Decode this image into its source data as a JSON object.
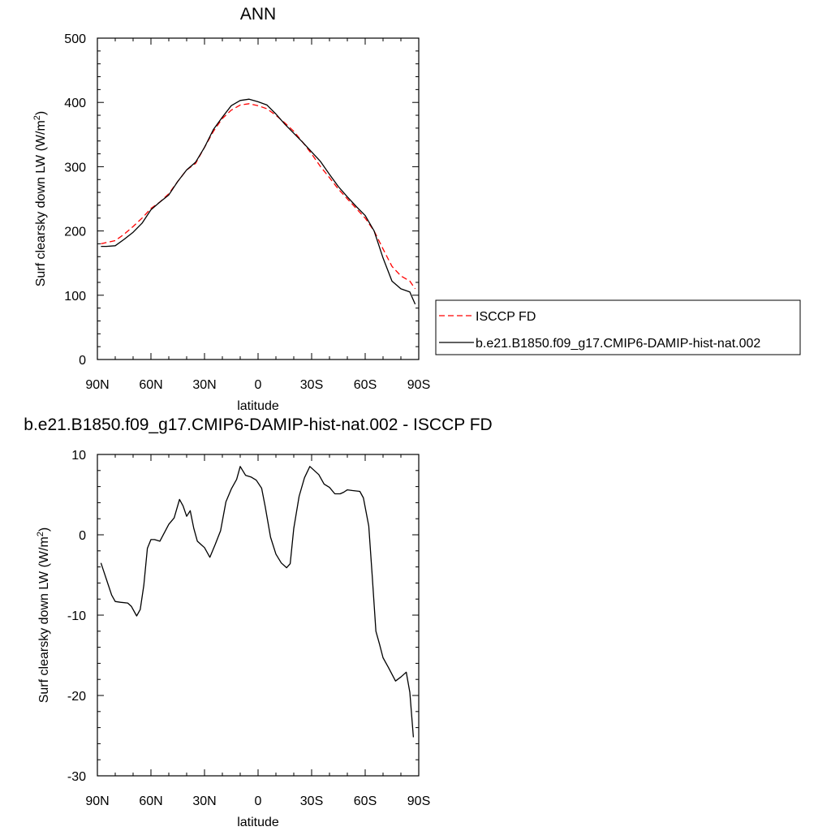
{
  "chart_data": [
    {
      "type": "line",
      "title": "ANN",
      "xlabel": "latitude",
      "ylabel": "Surf clearsky down LW (W/m",
      "ylabel_sup": "2",
      "ylabel_close": ")",
      "xlim": [
        90,
        -90
      ],
      "ylim": [
        0,
        500
      ],
      "yticks": [
        0,
        100,
        200,
        300,
        400,
        500
      ],
      "xticks": [
        {
          "value": 90,
          "label": "90N"
        },
        {
          "value": 60,
          "label": "60N"
        },
        {
          "value": 30,
          "label": "30N"
        },
        {
          "value": 0,
          "label": "0"
        },
        {
          "value": -30,
          "label": "30S"
        },
        {
          "value": -60,
          "label": "60S"
        },
        {
          "value": -90,
          "label": "90S"
        }
      ],
      "legend_position": "right",
      "series": [
        {
          "name": "ISCCP FD",
          "color": "#ff0000",
          "dash": true,
          "x": [
            88,
            85,
            80,
            75,
            70,
            65,
            60,
            55,
            50,
            45,
            40,
            35,
            30,
            25,
            20,
            15,
            10,
            5,
            0,
            -5,
            -10,
            -15,
            -20,
            -25,
            -30,
            -35,
            -40,
            -45,
            -50,
            -55,
            -60,
            -65,
            -70,
            -75,
            -80,
            -85,
            -88
          ],
          "y": [
            180,
            182,
            185,
            195,
            207,
            220,
            235,
            245,
            258,
            277,
            295,
            305,
            330,
            355,
            375,
            388,
            396,
            398,
            395,
            390,
            380,
            368,
            355,
            338,
            320,
            300,
            283,
            265,
            250,
            235,
            220,
            200,
            172,
            145,
            130,
            122,
            110
          ]
        },
        {
          "name": "b.e21.B1850.f09_g17.CMIP6-DAMIP-hist-nat.002",
          "color": "#000000",
          "dash": false,
          "x": [
            88,
            85,
            80,
            75,
            70,
            65,
            60,
            55,
            50,
            45,
            40,
            35,
            30,
            25,
            20,
            15,
            10,
            5,
            0,
            -5,
            -10,
            -15,
            -20,
            -25,
            -30,
            -35,
            -40,
            -45,
            -50,
            -55,
            -60,
            -65,
            -70,
            -75,
            -80,
            -85,
            -88
          ],
          "y": [
            176,
            176,
            177,
            187,
            198,
            212,
            233,
            245,
            256,
            277,
            295,
            307,
            330,
            358,
            377,
            395,
            403,
            405,
            401,
            396,
            382,
            366,
            352,
            338,
            323,
            308,
            288,
            269,
            253,
            238,
            224,
            200,
            158,
            122,
            110,
            105,
            86
          ]
        }
      ]
    },
    {
      "type": "line",
      "title": "b.e21.B1850.f09_g17.CMIP6-DAMIP-hist-nat.002 - ISCCP FD",
      "xlabel": "latitude",
      "ylabel": "Surf clearsky down LW (W/m",
      "ylabel_sup": "2",
      "ylabel_close": ")",
      "xlim": [
        90,
        -90
      ],
      "ylim": [
        -30,
        10
      ],
      "yticks": [
        -30,
        -20,
        -10,
        0,
        10
      ],
      "xticks": [
        {
          "value": 90,
          "label": "90N"
        },
        {
          "value": 60,
          "label": "60N"
        },
        {
          "value": 30,
          "label": "30N"
        },
        {
          "value": 0,
          "label": "0"
        },
        {
          "value": -30,
          "label": "30S"
        },
        {
          "value": -60,
          "label": "60S"
        },
        {
          "value": -90,
          "label": "90S"
        }
      ],
      "series": [
        {
          "color": "#000000",
          "dash": false,
          "x": [
            88,
            85,
            82,
            80,
            77,
            73,
            71,
            68,
            66,
            64,
            62,
            60,
            58,
            55,
            50,
            47,
            44,
            42,
            40,
            38,
            36,
            34,
            32,
            30,
            27,
            24,
            21,
            18,
            15,
            12,
            10,
            7,
            4,
            1,
            -2,
            -4,
            -7,
            -10,
            -13,
            -16,
            -18,
            -20,
            -23,
            -26,
            -29,
            -32,
            -34,
            -37,
            -40,
            -43,
            -46,
            -48,
            -50,
            -53,
            -57,
            -59,
            -62,
            -64,
            -66,
            -68,
            -70,
            -73,
            -77,
            -80,
            -83,
            -85,
            -87
          ],
          "y": [
            -3.5,
            -5.5,
            -7.5,
            -8.3,
            -8.4,
            -8.5,
            -8.9,
            -10.1,
            -9.3,
            -6.3,
            -1.7,
            -0.6,
            -0.6,
            -0.8,
            1.3,
            2.1,
            4.4,
            3.6,
            2.3,
            3.0,
            0.8,
            -0.8,
            -1.2,
            -1.6,
            -2.8,
            -1.2,
            0.5,
            4.1,
            5.7,
            6.9,
            8.5,
            7.4,
            7.2,
            6.8,
            5.8,
            3.5,
            -0.3,
            -2.4,
            -3.5,
            -4.1,
            -3.6,
            0.8,
            4.8,
            7.1,
            8.5,
            7.9,
            7.5,
            6.3,
            5.9,
            5.1,
            5.1,
            5.3,
            5.6,
            5.5,
            5.4,
            4.6,
            1.1,
            -5.3,
            -12.0,
            -13.6,
            -15.3,
            -16.5,
            -18.2,
            -17.7,
            -17.1,
            -19.6,
            -25.2
          ]
        }
      ]
    }
  ]
}
